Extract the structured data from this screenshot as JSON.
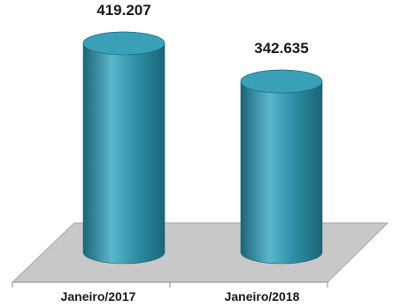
{
  "chart_data": {
    "type": "bar",
    "style": "3d-cylinder",
    "categories": [
      "Janeiro/2017",
      "Janeiro/2018"
    ],
    "values": [
      419207,
      342635
    ],
    "data_labels": [
      "419.207",
      "342.635"
    ],
    "title": "",
    "xlabel": "",
    "ylabel": "",
    "ylim": [
      0,
      419207
    ],
    "grid": false,
    "legend": "none",
    "colors": {
      "bar": "#2e8fa6",
      "bar_light": "#5bb7cc",
      "bar_dark": "#1d6478",
      "bar_top": "#3aa0b8",
      "floor": "#c8c8c8",
      "floor_edge": "#a6a6a6",
      "axis": "#8c8c8c",
      "text": "#1a1a1a"
    }
  }
}
